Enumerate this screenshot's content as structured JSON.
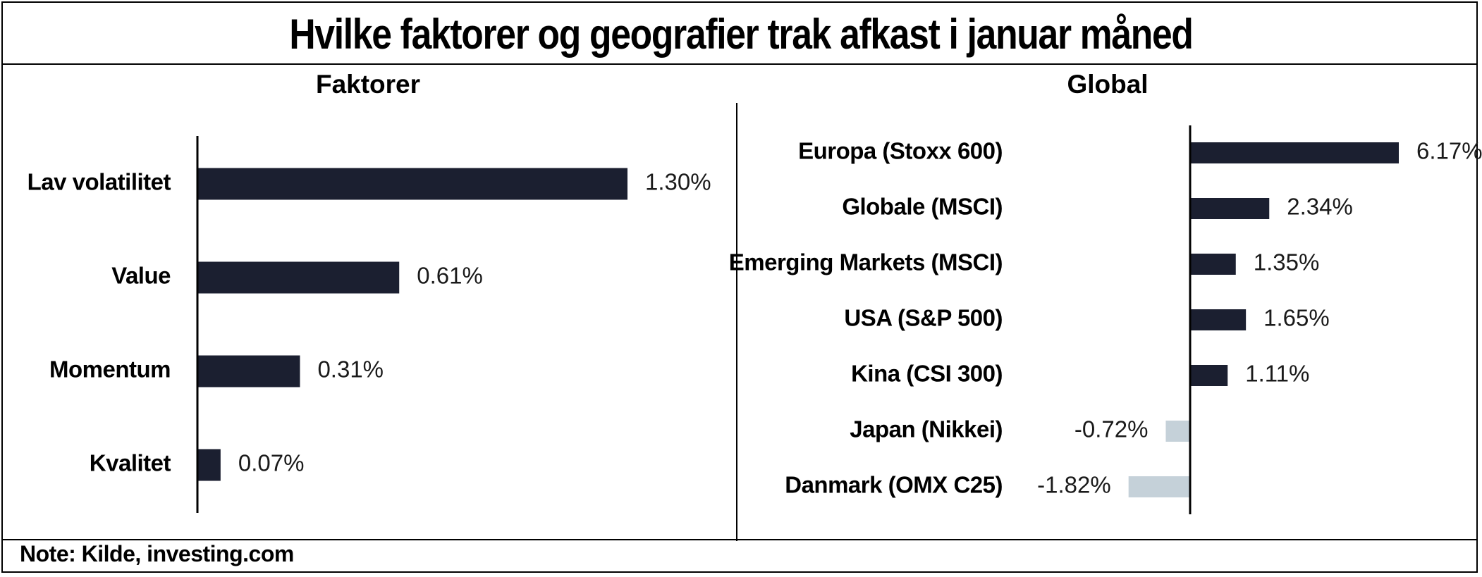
{
  "header": {
    "title": "Hvilke faktorer og geografier trak afkast i januar måned"
  },
  "footer": {
    "note": "Note: Kilde, investing.com"
  },
  "chart_data": [
    {
      "type": "bar",
      "orientation": "horizontal",
      "title": "Faktorer",
      "categories": [
        "Lav volatilitet",
        "Value",
        "Momentum",
        "Kvalitet"
      ],
      "values": [
        1.3,
        0.61,
        0.31,
        0.07
      ],
      "value_labels": [
        "1.30%",
        "0.61%",
        "0.31%",
        "0.07%"
      ],
      "unit": "%",
      "xlim": [
        0,
        1.3
      ],
      "colors": {
        "positive": "#1b1f30",
        "negative": "#c5d1d9"
      }
    },
    {
      "type": "bar",
      "orientation": "horizontal",
      "title": "Global",
      "categories": [
        "Europa (Stoxx 600)",
        "Globale (MSCI)",
        "Emerging Markets (MSCI)",
        "USA (S&P 500)",
        "Kina (CSI 300)",
        "Japan (Nikkei)",
        "Danmark (OMX C25)"
      ],
      "values": [
        6.17,
        2.34,
        1.35,
        1.65,
        1.11,
        -0.72,
        -1.82
      ],
      "value_labels": [
        "6.17%",
        "2.34%",
        "1.35%",
        "1.65%",
        "1.11%",
        "-0.72%",
        "-1.82%"
      ],
      "unit": "%",
      "xlim": [
        -1.82,
        6.17
      ],
      "colors": {
        "positive": "#1b1f30",
        "negative": "#c5d1d9"
      }
    }
  ]
}
